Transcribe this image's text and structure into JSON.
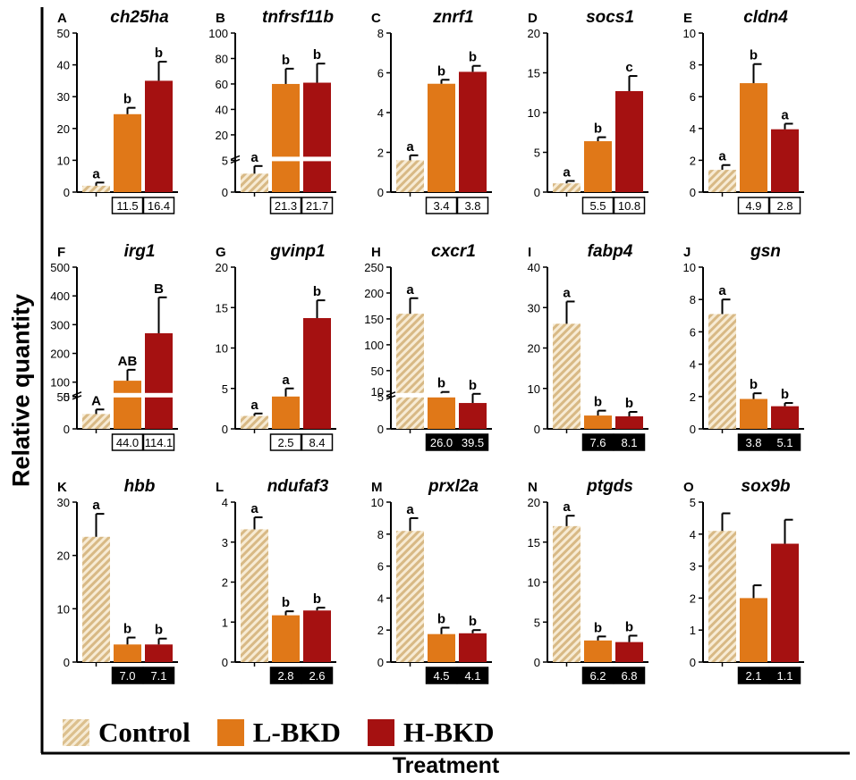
{
  "y_axis_label": "Relative quantity",
  "x_axis_label": "Treatment",
  "colors": {
    "Control": "#d9bc8a",
    "L-BKD": "#e07818",
    "H-BKD": "#a51111"
  },
  "legend": [
    {
      "name": "Control",
      "style": "hatched"
    },
    {
      "name": "L-BKD",
      "style": "solid"
    },
    {
      "name": "H-BKD",
      "style": "solid"
    }
  ],
  "chart_data": [
    {
      "type": "bar",
      "panel": "A",
      "title": "ch25ha",
      "categories": [
        "Control",
        "L-BKD",
        "H-BKD"
      ],
      "values": [
        2,
        24.5,
        35
      ],
      "errors": [
        1,
        2,
        6
      ],
      "letters": [
        "a",
        "b",
        "b"
      ],
      "ylim": [
        0,
        50
      ],
      "yticks": [
        "0",
        "10",
        "20",
        "30",
        "40",
        "50"
      ],
      "fold_changes": [
        "11.5",
        "16.4"
      ],
      "fold_style": "up"
    },
    {
      "type": "bar",
      "panel": "B",
      "title": "tnfrsf11b",
      "categories": [
        "Control",
        "L-BKD",
        "H-BKD"
      ],
      "values": [
        2.9,
        60,
        61
      ],
      "errors": [
        1.2,
        12,
        15
      ],
      "letters": [
        "a",
        "b",
        "b"
      ],
      "ylim": [
        0,
        100
      ],
      "yticks": [
        "0",
        "5",
        "20",
        "40",
        "60",
        "80",
        "100"
      ],
      "broken_axis": true,
      "fold_changes": [
        "21.3",
        "21.7"
      ],
      "fold_style": "up"
    },
    {
      "type": "bar",
      "panel": "C",
      "title": "znrf1",
      "categories": [
        "Control",
        "L-BKD",
        "H-BKD"
      ],
      "values": [
        1.6,
        5.45,
        6.05
      ],
      "errors": [
        0.25,
        0.2,
        0.3
      ],
      "letters": [
        "a",
        "b",
        "b"
      ],
      "ylim": [
        0,
        8
      ],
      "yticks": [
        "0",
        "2",
        "4",
        "6",
        "8"
      ],
      "fold_changes": [
        "3.4",
        "3.8"
      ],
      "fold_style": "up"
    },
    {
      "type": "bar",
      "panel": "D",
      "title": "socs1",
      "categories": [
        "Control",
        "L-BKD",
        "H-BKD"
      ],
      "values": [
        1.1,
        6.4,
        12.7
      ],
      "errors": [
        0.3,
        0.5,
        1.9
      ],
      "letters": [
        "a",
        "b",
        "c"
      ],
      "ylim": [
        0,
        20
      ],
      "yticks": [
        "0",
        "5",
        "10",
        "15",
        "20"
      ],
      "fold_changes": [
        "5.5",
        "10.8"
      ],
      "fold_style": "up"
    },
    {
      "type": "bar",
      "panel": "E",
      "title": "cldn4",
      "categories": [
        "Control",
        "L-BKD",
        "H-BKD"
      ],
      "values": [
        1.4,
        6.85,
        3.95
      ],
      "errors": [
        0.3,
        1.2,
        0.35
      ],
      "letters": [
        "a",
        "b",
        "a"
      ],
      "ylim": [
        0,
        10
      ],
      "yticks": [
        "0",
        "2",
        "4",
        "6",
        "8",
        "10"
      ],
      "fold_changes": [
        "4.9",
        "2.8"
      ],
      "fold_style": "up"
    },
    {
      "type": "bar",
      "panel": "F",
      "title": "irg1",
      "categories": [
        "Control",
        "L-BKD",
        "H-BKD"
      ],
      "values": [
        2.3,
        105,
        270
      ],
      "errors": [
        0.7,
        38,
        125
      ],
      "letters": [
        "A",
        "AB",
        "B"
      ],
      "ylim": [
        0,
        500
      ],
      "yticks": [
        "0",
        "5",
        "50",
        "100",
        "200",
        "300",
        "400",
        "500"
      ],
      "broken_axis": true,
      "fold_changes": [
        "44.0",
        "114.1"
      ],
      "fold_style": "up"
    },
    {
      "type": "bar",
      "panel": "G",
      "title": "gvinp1",
      "categories": [
        "Control",
        "L-BKD",
        "H-BKD"
      ],
      "values": [
        1.6,
        4,
        13.7
      ],
      "errors": [
        0.3,
        1,
        2.2
      ],
      "letters": [
        "a",
        "a",
        "b"
      ],
      "ylim": [
        0,
        20
      ],
      "yticks": [
        "0",
        "5",
        "10",
        "15",
        "20"
      ],
      "fold_changes": [
        "2.5",
        "8.4"
      ],
      "fold_style": "up"
    },
    {
      "type": "bar",
      "panel": "H",
      "title": "cxcr1",
      "categories": [
        "Control",
        "L-BKD",
        "H-BKD"
      ],
      "values": [
        160,
        6.1,
        4
      ],
      "errors": [
        30,
        2.7,
        1.2
      ],
      "letters": [
        "a",
        "b",
        "b"
      ],
      "ylim": [
        0,
        250
      ],
      "yticks": [
        "0",
        "5",
        "10",
        "50",
        "100",
        "150",
        "200",
        "250"
      ],
      "broken_axis": true,
      "fold_changes": [
        "26.0",
        "39.5"
      ],
      "fold_style": "down"
    },
    {
      "type": "bar",
      "panel": "I",
      "title": "fabp4",
      "categories": [
        "Control",
        "L-BKD",
        "H-BKD"
      ],
      "values": [
        26,
        3.3,
        3.1
      ],
      "errors": [
        5.5,
        1.2,
        1.1
      ],
      "letters": [
        "a",
        "b",
        "b"
      ],
      "ylim": [
        0,
        40
      ],
      "yticks": [
        "0",
        "10",
        "20",
        "30",
        "40"
      ],
      "fold_changes": [
        "7.6",
        "8.1"
      ],
      "fold_style": "down"
    },
    {
      "type": "bar",
      "panel": "J",
      "title": "gsn",
      "categories": [
        "Control",
        "L-BKD",
        "H-BKD"
      ],
      "values": [
        7.1,
        1.85,
        1.4
      ],
      "errors": [
        0.9,
        0.35,
        0.2
      ],
      "letters": [
        "a",
        "b",
        "b"
      ],
      "ylim": [
        0,
        10
      ],
      "yticks": [
        "0",
        "2",
        "4",
        "6",
        "8",
        "10"
      ],
      "fold_changes": [
        "3.8",
        "5.1"
      ],
      "fold_style": "down"
    },
    {
      "type": "bar",
      "panel": "K",
      "title": "hbb",
      "categories": [
        "Control",
        "L-BKD",
        "H-BKD"
      ],
      "values": [
        23.5,
        3.3,
        3.3
      ],
      "errors": [
        4.3,
        1.3,
        1.1
      ],
      "letters": [
        "a",
        "b",
        "b"
      ],
      "ylim": [
        0,
        30
      ],
      "yticks": [
        "0",
        "10",
        "20",
        "30"
      ],
      "fold_changes": [
        "7.0",
        "7.1"
      ],
      "fold_style": "down"
    },
    {
      "type": "bar",
      "panel": "L",
      "title": "ndufaf3",
      "categories": [
        "Control",
        "L-BKD",
        "H-BKD"
      ],
      "values": [
        3.32,
        1.17,
        1.29
      ],
      "errors": [
        0.3,
        0.1,
        0.07
      ],
      "letters": [
        "a",
        "b",
        "b"
      ],
      "ylim": [
        0,
        4
      ],
      "yticks": [
        "0",
        "1",
        "2",
        "3",
        "4"
      ],
      "fold_changes": [
        "2.8",
        "2.6"
      ],
      "fold_style": "down"
    },
    {
      "type": "bar",
      "panel": "M",
      "title": "prxl2a",
      "categories": [
        "Control",
        "L-BKD",
        "H-BKD"
      ],
      "values": [
        8.2,
        1.75,
        1.8
      ],
      "errors": [
        0.8,
        0.4,
        0.2
      ],
      "letters": [
        "a",
        "b",
        "b"
      ],
      "ylim": [
        0,
        10
      ],
      "yticks": [
        "0",
        "2",
        "4",
        "6",
        "8",
        "10"
      ],
      "fold_changes": [
        "4.5",
        "4.1"
      ],
      "fold_style": "down"
    },
    {
      "type": "bar",
      "panel": "N",
      "title": "ptgds",
      "categories": [
        "Control",
        "L-BKD",
        "H-BKD"
      ],
      "values": [
        17,
        2.7,
        2.5
      ],
      "errors": [
        1.3,
        0.5,
        0.8
      ],
      "letters": [
        "a",
        "b",
        "b"
      ],
      "ylim": [
        0,
        20
      ],
      "yticks": [
        "0",
        "5",
        "10",
        "15",
        "20"
      ],
      "fold_changes": [
        "6.2",
        "6.8"
      ],
      "fold_style": "down"
    },
    {
      "type": "bar",
      "panel": "O",
      "title": "sox9b",
      "categories": [
        "Control",
        "L-BKD",
        "H-BKD"
      ],
      "values": [
        4.1,
        2,
        3.7
      ],
      "errors": [
        0.55,
        0.4,
        0.75
      ],
      "letters": [
        "",
        "",
        ""
      ],
      "ylim": [
        0,
        5
      ],
      "yticks": [
        "0",
        "1",
        "2",
        "3",
        "4",
        "5"
      ],
      "fold_changes": [
        "2.1",
        "1.1"
      ],
      "fold_style": "down"
    }
  ]
}
